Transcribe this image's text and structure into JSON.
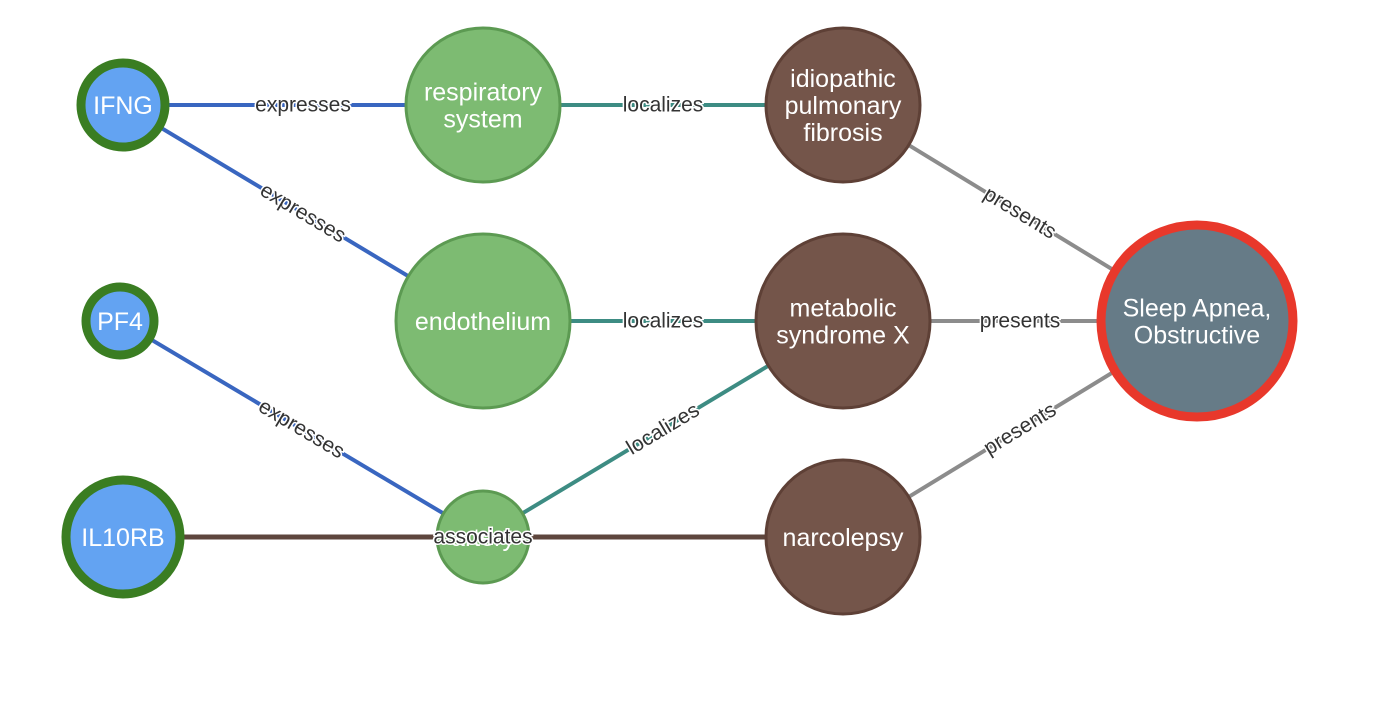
{
  "graph": {
    "nodes": [
      {
        "id": "ifng",
        "lines": [
          "IFNG"
        ],
        "kind": "gene"
      },
      {
        "id": "pf4",
        "lines": [
          "PF4"
        ],
        "kind": "gene"
      },
      {
        "id": "il10rb",
        "lines": [
          "IL10RB"
        ],
        "kind": "gene"
      },
      {
        "id": "respiratory_system",
        "lines": [
          "respiratory",
          "system"
        ],
        "kind": "anatomy"
      },
      {
        "id": "endothelium",
        "lines": [
          "endothelium"
        ],
        "kind": "anatomy"
      },
      {
        "id": "artery",
        "lines": [
          "artery"
        ],
        "kind": "anatomy"
      },
      {
        "id": "ipf",
        "lines": [
          "idiopathic",
          "pulmonary",
          "fibrosis"
        ],
        "kind": "disease"
      },
      {
        "id": "metabolic_syndrome_x",
        "lines": [
          "metabolic",
          "syndrome X"
        ],
        "kind": "disease"
      },
      {
        "id": "narcolepsy",
        "lines": [
          "narcolepsy"
        ],
        "kind": "disease"
      },
      {
        "id": "sleep_apnea",
        "lines": [
          "Sleep Apnea,",
          "Obstructive"
        ],
        "kind": "target"
      }
    ],
    "edges": [
      {
        "source": "ifng",
        "target": "respiratory_system",
        "label": "expresses",
        "kind": "expresses"
      },
      {
        "source": "ifng",
        "target": "endothelium",
        "label": "expresses",
        "kind": "expresses"
      },
      {
        "source": "pf4",
        "target": "artery",
        "label": "expresses",
        "kind": "expresses"
      },
      {
        "source": "respiratory_system",
        "target": "ipf",
        "label": "localizes",
        "kind": "localizes"
      },
      {
        "source": "endothelium",
        "target": "metabolic_syndrome_x",
        "label": "localizes",
        "kind": "localizes"
      },
      {
        "source": "artery",
        "target": "metabolic_syndrome_x",
        "label": "localizes",
        "kind": "localizes"
      },
      {
        "source": "il10rb",
        "target": "narcolepsy",
        "label": "associates",
        "kind": "associates"
      },
      {
        "source": "ipf",
        "target": "sleep_apnea",
        "label": "presents",
        "kind": "presents"
      },
      {
        "source": "metabolic_syndrome_x",
        "target": "sleep_apnea",
        "label": "presents",
        "kind": "presents"
      },
      {
        "source": "narcolepsy",
        "target": "sleep_apnea",
        "label": "presents",
        "kind": "presents"
      }
    ],
    "node_styles": {
      "gene": {
        "fill": "#63a3f2",
        "stroke": "#3a7d22"
      },
      "anatomy": {
        "fill": "#7dbb72",
        "stroke": "#5c9a52"
      },
      "disease": {
        "fill": "#74554a",
        "stroke": "#5e4036"
      },
      "target": {
        "fill": "#667b87",
        "stroke": "#e8382b"
      }
    },
    "edge_colors": {
      "expresses": "#3966c0",
      "localizes": "#3d8c83",
      "associates": "#5e463d",
      "presents": "#8c8c8c"
    }
  }
}
